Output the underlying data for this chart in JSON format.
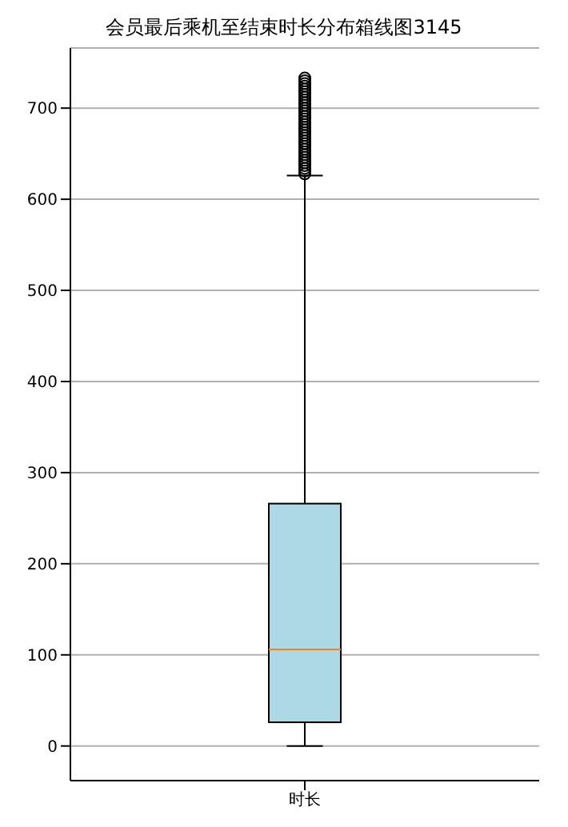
{
  "chart_data": {
    "type": "box",
    "title": "会员最后乘机至结束时长分布箱线图3145",
    "categories": [
      "时长"
    ],
    "color": "#add8e6",
    "marker": "circle",
    "grid": "y",
    "ylim": [
      -38,
      766
    ],
    "yticks": [
      0,
      100,
      200,
      300,
      400,
      500,
      600,
      700
    ],
    "boxes": [
      {
        "low": 0,
        "q1": 26,
        "median": 106,
        "q3": 266,
        "high": 626,
        "outliers": [
          628,
          631,
          634,
          637,
          640,
          643,
          646,
          649,
          652,
          655,
          658,
          661,
          664,
          667,
          670,
          673,
          676,
          679,
          682,
          685,
          688,
          691,
          694,
          697,
          700,
          703,
          706,
          709,
          712,
          715,
          718,
          721,
          724,
          727,
          730,
          733
        ]
      }
    ]
  }
}
